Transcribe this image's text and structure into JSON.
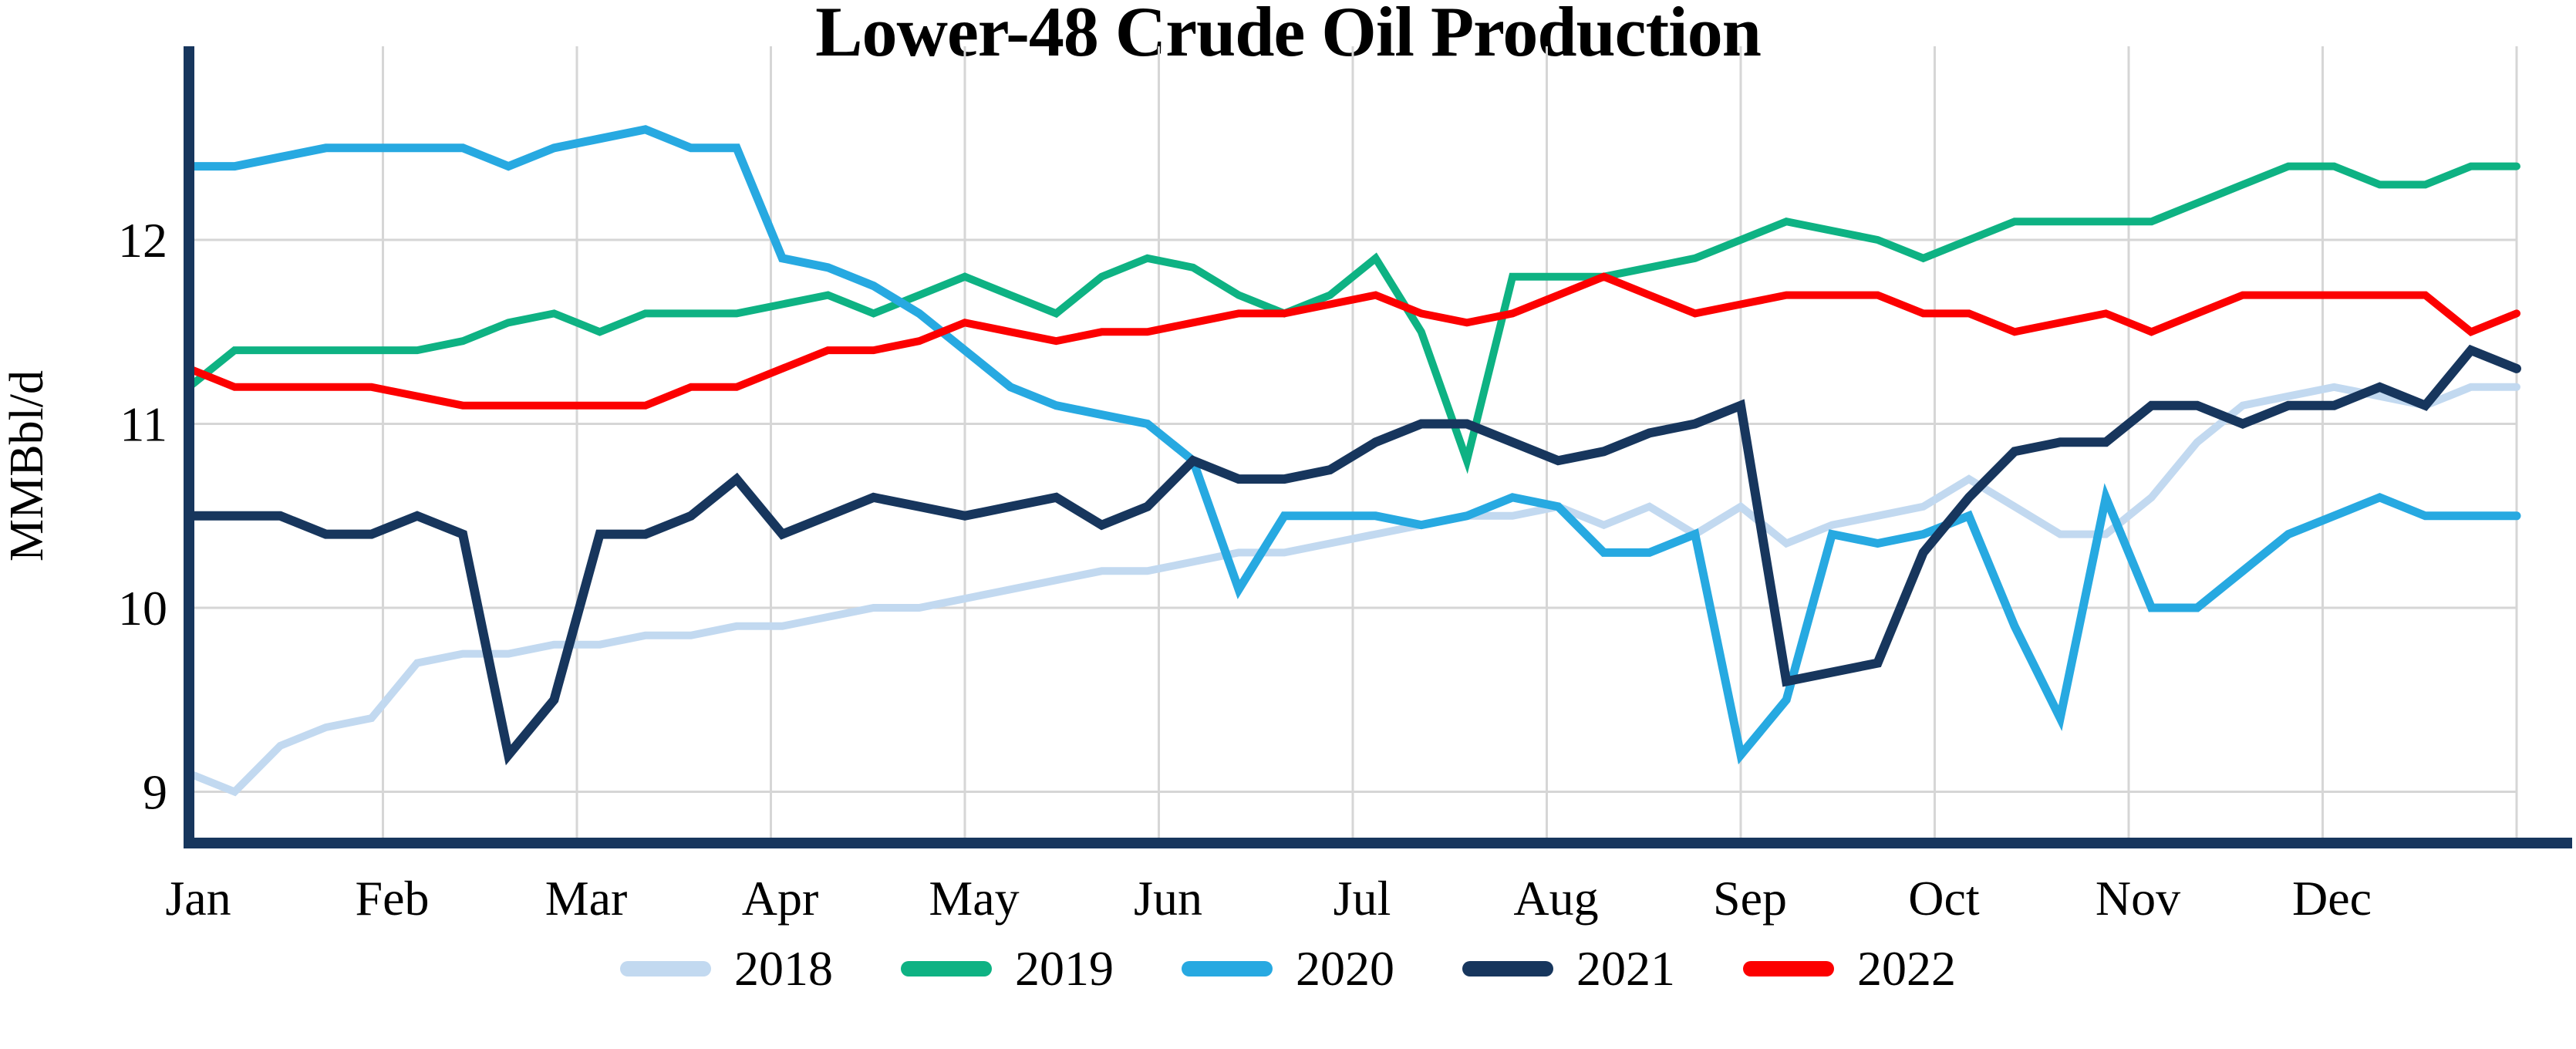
{
  "title": "Lower-48 Crude Oil Production",
  "ylabel": "MMBbl/d",
  "chart_data": {
    "type": "line",
    "title": "Lower-48 Crude Oil Production",
    "xlabel": "",
    "ylabel": "MMBbl/d",
    "x_unit": "week (52 weekly points per year)",
    "month_ticks": [
      "Jan",
      "Feb",
      "Mar",
      "Apr",
      "May",
      "Jun",
      "Jul",
      "Aug",
      "Sep",
      "Oct",
      "Nov",
      "Dec"
    ],
    "yticks": [
      9,
      10,
      11,
      12
    ],
    "ylim": [
      8.72,
      13.05
    ],
    "grid": true,
    "legend_position": "bottom",
    "axis_color": "#17365D",
    "grid_color": "#D6D6D6",
    "series": [
      {
        "name": "2018",
        "color": "#C2D9F0",
        "width": 10,
        "values": [
          9.1,
          9.0,
          9.25,
          9.35,
          9.4,
          9.7,
          9.75,
          9.75,
          9.8,
          9.8,
          9.85,
          9.85,
          9.9,
          9.9,
          9.95,
          10.0,
          10.0,
          10.05,
          10.1,
          10.15,
          10.2,
          10.2,
          10.25,
          10.3,
          10.3,
          10.35,
          10.4,
          10.45,
          10.5,
          10.5,
          10.55,
          10.45,
          10.55,
          10.4,
          10.55,
          10.35,
          10.45,
          10.5,
          10.55,
          10.7,
          10.55,
          10.4,
          10.4,
          10.6,
          10.9,
          11.1,
          11.15,
          11.2,
          11.15,
          11.1,
          11.2,
          11.2
        ]
      },
      {
        "name": "2019",
        "color": "#0EB283",
        "width": 10,
        "values": [
          11.2,
          11.4,
          11.4,
          11.4,
          11.4,
          11.4,
          11.45,
          11.55,
          11.6,
          11.5,
          11.6,
          11.6,
          11.6,
          11.65,
          11.7,
          11.6,
          11.7,
          11.8,
          11.7,
          11.6,
          11.8,
          11.9,
          11.85,
          11.7,
          11.6,
          11.7,
          11.9,
          11.5,
          10.8,
          11.8,
          11.8,
          11.8,
          11.85,
          11.9,
          12.0,
          12.1,
          12.05,
          12.0,
          11.9,
          12.0,
          12.1,
          12.1,
          12.1,
          12.1,
          12.2,
          12.3,
          12.4,
          12.4,
          12.3,
          12.3,
          12.4,
          12.4
        ]
      },
      {
        "name": "2020",
        "color": "#27A9E1",
        "width": 11,
        "values": [
          12.4,
          12.4,
          12.45,
          12.5,
          12.5,
          12.5,
          12.5,
          12.4,
          12.5,
          12.55,
          12.6,
          12.5,
          12.5,
          11.9,
          11.85,
          11.75,
          11.6,
          11.4,
          11.2,
          11.1,
          11.05,
          11.0,
          10.8,
          10.1,
          10.5,
          10.5,
          10.5,
          10.45,
          10.5,
          10.6,
          10.55,
          10.3,
          10.3,
          10.4,
          9.2,
          9.5,
          10.4,
          10.35,
          10.4,
          10.5,
          9.9,
          9.4,
          10.6,
          10.0,
          10.0,
          10.2,
          10.4,
          10.5,
          10.6,
          10.5,
          10.5,
          10.5
        ]
      },
      {
        "name": "2021",
        "color": "#17365D",
        "width": 12,
        "values": [
          10.5,
          10.5,
          10.5,
          10.4,
          10.4,
          10.5,
          10.4,
          9.2,
          9.5,
          10.4,
          10.4,
          10.5,
          10.7,
          10.4,
          10.5,
          10.6,
          10.55,
          10.5,
          10.55,
          10.6,
          10.45,
          10.55,
          10.8,
          10.7,
          10.7,
          10.75,
          10.9,
          11.0,
          11.0,
          10.9,
          10.8,
          10.85,
          10.95,
          11.0,
          11.1,
          9.6,
          9.65,
          9.7,
          10.3,
          10.6,
          10.85,
          10.9,
          10.9,
          11.1,
          11.1,
          11.0,
          11.1,
          11.1,
          11.2,
          11.1,
          11.4,
          11.3
        ]
      },
      {
        "name": "2022",
        "color": "#FC0000",
        "width": 10,
        "values": [
          11.3,
          11.2,
          11.2,
          11.2,
          11.2,
          11.15,
          11.1,
          11.1,
          11.1,
          11.1,
          11.1,
          11.2,
          11.2,
          11.3,
          11.4,
          11.4,
          11.45,
          11.55,
          11.5,
          11.45,
          11.5,
          11.5,
          11.55,
          11.6,
          11.6,
          11.65,
          11.7,
          11.6,
          11.55,
          11.6,
          11.7,
          11.8,
          11.7,
          11.6,
          11.65,
          11.7,
          11.7,
          11.7,
          11.6,
          11.6,
          11.5,
          11.55,
          11.6,
          11.5,
          11.6,
          11.7,
          11.7,
          11.7,
          11.7,
          11.7,
          11.5,
          11.6
        ]
      }
    ]
  }
}
